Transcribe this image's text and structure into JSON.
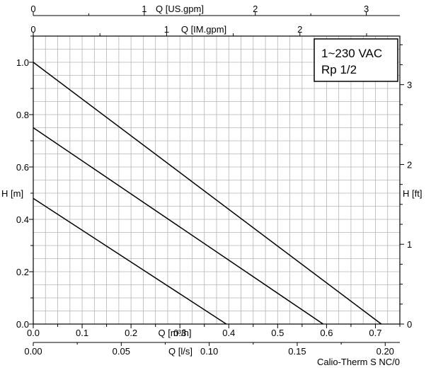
{
  "chart_data": {
    "type": "line",
    "ylabel": "H [m]",
    "ylim": [
      0,
      1.1
    ],
    "y_ticks": [
      "0.0",
      "0.2",
      "0.4",
      "0.6",
      "0.8",
      "1.0"
    ],
    "xlim": [
      0,
      0.75
    ],
    "x_ticks_m3h": [
      "0.0",
      "0.1",
      "0.2",
      "0.3",
      "0.4",
      "0.5",
      "0.6",
      "0.7"
    ],
    "xlabel_m3h": "Q [m³/h]",
    "x_ticks_ls": [
      "0.00",
      "0.05",
      "0.10",
      "0.15",
      "0.20"
    ],
    "xlabel_ls": "Q [l/s]",
    "x_ticks_usgpm": [
      "0",
      "1",
      "2",
      "3"
    ],
    "xlabel_usgpm": "Q [US.gpm]",
    "x_ticks_imgpm": [
      "0",
      "1",
      "2"
    ],
    "xlabel_imgpm": "Q [IM.gpm]",
    "y2_ticks": [
      "0",
      "1",
      "2",
      "3"
    ],
    "y2label": "H [ft]",
    "grid": true,
    "series": [
      {
        "x": [
          0,
          0.712
        ],
        "y": [
          1.0,
          0.0
        ]
      },
      {
        "x": [
          0,
          0.593
        ],
        "y": [
          0.75,
          0.0
        ]
      },
      {
        "x": [
          0,
          0.395
        ],
        "y": [
          0.48,
          0.0
        ]
      }
    ],
    "annotations": [
      "1~230 VAC",
      "Rp 1/2"
    ],
    "footer": "Calio-Therm S NC/0"
  }
}
